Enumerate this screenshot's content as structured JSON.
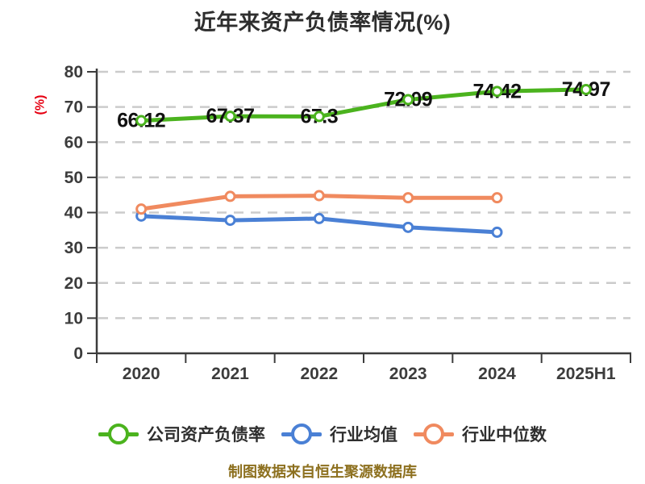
{
  "chart_data": {
    "type": "line",
    "title": "近年来资产负债率情况(%)",
    "ylabel": "(%)",
    "ylim": [
      0,
      80
    ],
    "y_step": 10,
    "grid": "horizontal-dashed",
    "legend_position": "bottom",
    "categories": [
      "2020",
      "2021",
      "2022",
      "2023",
      "2024",
      "2025H1"
    ],
    "series": [
      {
        "name": "公司资产负债率",
        "color": "#4bb31e",
        "values": [
          66.12,
          67.37,
          67.3,
          72.09,
          74.42,
          74.97
        ],
        "data_labels": [
          "66.12",
          "67.37",
          "67.3",
          "72.09",
          "74.42",
          "74.97"
        ],
        "show_labels": true
      },
      {
        "name": "行业均值",
        "color": "#4a80d5",
        "values": [
          39.0,
          37.8,
          38.3,
          35.8,
          34.4,
          null
        ],
        "show_labels": false,
        "estimated": true
      },
      {
        "name": "行业中位数",
        "color": "#f08a5f",
        "values": [
          41.0,
          44.6,
          44.8,
          44.2,
          44.2,
          null
        ],
        "show_labels": false,
        "estimated": true
      }
    ]
  },
  "footer": {
    "source_note": "制图数据来自恒生聚源数据库"
  },
  "colors": {
    "background": "#ffffff",
    "axis": "#3c3c3c",
    "grid": "#cbcbcb",
    "tick_label": "#3c3c3c",
    "title": "#2e2e2e",
    "ylabel": "#e60012",
    "point_label": "#111111",
    "legend_text": "#2f2f2f",
    "source_note": "#8d701f"
  }
}
